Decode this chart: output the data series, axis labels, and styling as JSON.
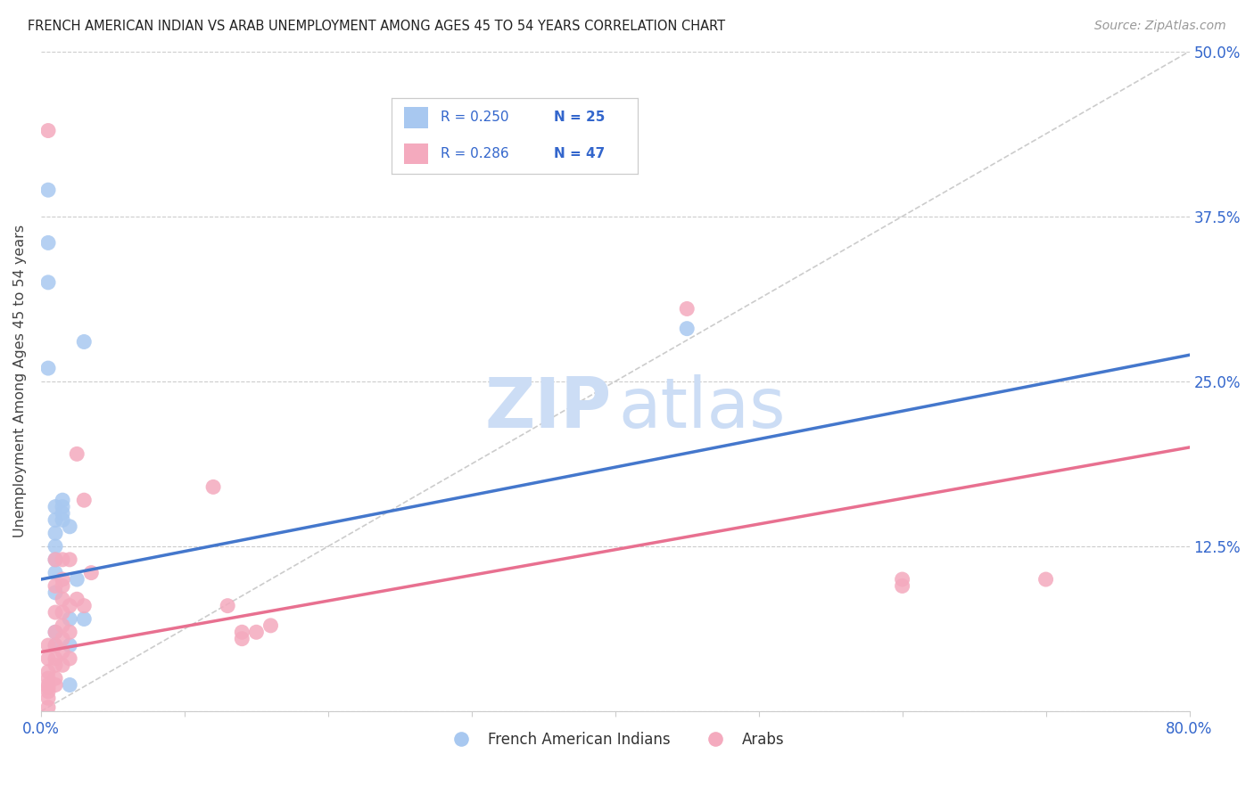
{
  "title": "FRENCH AMERICAN INDIAN VS ARAB UNEMPLOYMENT AMONG AGES 45 TO 54 YEARS CORRELATION CHART",
  "source": "Source: ZipAtlas.com",
  "ylabel": "Unemployment Among Ages 45 to 54 years",
  "xlim": [
    0,
    0.8
  ],
  "ylim": [
    0,
    0.5
  ],
  "xticks": [
    0.0,
    0.1,
    0.2,
    0.3,
    0.4,
    0.5,
    0.6,
    0.7,
    0.8
  ],
  "xtick_labels": [
    "0.0%",
    "",
    "",
    "",
    "",
    "",
    "",
    "",
    "80.0%"
  ],
  "yticks": [
    0.0,
    0.125,
    0.25,
    0.375,
    0.5
  ],
  "ytick_labels": [
    "",
    "12.5%",
    "25.0%",
    "37.5%",
    "50.0%"
  ],
  "blue_color": "#a8c8f0",
  "pink_color": "#f4aabe",
  "blue_line_color": "#4477cc",
  "pink_line_color": "#e87090",
  "blue_scatter": [
    [
      0.005,
      0.395
    ],
    [
      0.005,
      0.355
    ],
    [
      0.005,
      0.325
    ],
    [
      0.005,
      0.26
    ],
    [
      0.01,
      0.155
    ],
    [
      0.01,
      0.145
    ],
    [
      0.01,
      0.135
    ],
    [
      0.01,
      0.125
    ],
    [
      0.01,
      0.115
    ],
    [
      0.01,
      0.105
    ],
    [
      0.01,
      0.09
    ],
    [
      0.01,
      0.06
    ],
    [
      0.01,
      0.05
    ],
    [
      0.015,
      0.16
    ],
    [
      0.015,
      0.155
    ],
    [
      0.015,
      0.15
    ],
    [
      0.015,
      0.145
    ],
    [
      0.02,
      0.14
    ],
    [
      0.02,
      0.07
    ],
    [
      0.02,
      0.05
    ],
    [
      0.02,
      0.02
    ],
    [
      0.025,
      0.1
    ],
    [
      0.03,
      0.28
    ],
    [
      0.03,
      0.07
    ],
    [
      0.45,
      0.29
    ]
  ],
  "pink_scatter": [
    [
      0.005,
      0.44
    ],
    [
      0.005,
      0.05
    ],
    [
      0.005,
      0.04
    ],
    [
      0.005,
      0.03
    ],
    [
      0.005,
      0.025
    ],
    [
      0.005,
      0.02
    ],
    [
      0.005,
      0.018
    ],
    [
      0.005,
      0.015
    ],
    [
      0.005,
      0.01
    ],
    [
      0.01,
      0.115
    ],
    [
      0.01,
      0.095
    ],
    [
      0.01,
      0.075
    ],
    [
      0.01,
      0.06
    ],
    [
      0.01,
      0.05
    ],
    [
      0.01,
      0.04
    ],
    [
      0.01,
      0.035
    ],
    [
      0.01,
      0.025
    ],
    [
      0.01,
      0.02
    ],
    [
      0.015,
      0.115
    ],
    [
      0.015,
      0.1
    ],
    [
      0.015,
      0.095
    ],
    [
      0.015,
      0.085
    ],
    [
      0.015,
      0.075
    ],
    [
      0.015,
      0.065
    ],
    [
      0.015,
      0.055
    ],
    [
      0.015,
      0.045
    ],
    [
      0.015,
      0.035
    ],
    [
      0.02,
      0.115
    ],
    [
      0.02,
      0.08
    ],
    [
      0.02,
      0.06
    ],
    [
      0.02,
      0.04
    ],
    [
      0.025,
      0.195
    ],
    [
      0.025,
      0.085
    ],
    [
      0.03,
      0.16
    ],
    [
      0.03,
      0.08
    ],
    [
      0.035,
      0.105
    ],
    [
      0.12,
      0.17
    ],
    [
      0.13,
      0.08
    ],
    [
      0.14,
      0.06
    ],
    [
      0.14,
      0.055
    ],
    [
      0.15,
      0.06
    ],
    [
      0.16,
      0.065
    ],
    [
      0.45,
      0.305
    ],
    [
      0.6,
      0.1
    ],
    [
      0.6,
      0.095
    ],
    [
      0.7,
      0.1
    ],
    [
      0.005,
      0.003
    ]
  ],
  "blue_line_x": [
    0.0,
    0.8
  ],
  "blue_line_y": [
    0.1,
    0.27
  ],
  "pink_line_x": [
    0.0,
    0.8
  ],
  "pink_line_y": [
    0.045,
    0.2
  ],
  "diag_line_x": [
    0.0,
    0.8
  ],
  "diag_line_y": [
    0.0,
    0.5
  ]
}
